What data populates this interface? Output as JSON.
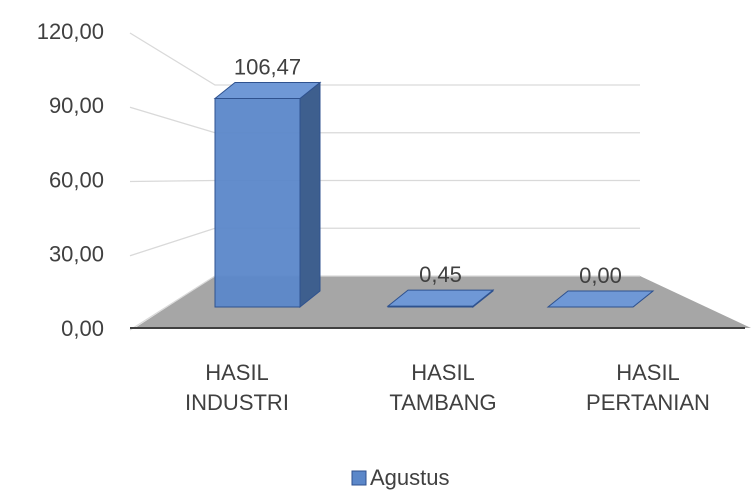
{
  "chart_data": {
    "type": "bar3d",
    "categories": [
      "HASIL INDUSTRI",
      "HASIL TAMBANG",
      "HASIL PERTANIAN"
    ],
    "series": [
      {
        "name": "Agustus",
        "color": "#5b87c9",
        "values": [
          106.47,
          0.45,
          0
        ],
        "value_labels": [
          "106,47",
          "0,45",
          "0,00"
        ]
      }
    ],
    "ylim": [
      0,
      120
    ],
    "yticks": [
      {
        "value": 0,
        "label": "0,00"
      },
      {
        "value": 30,
        "label": "30,00"
      },
      {
        "value": 60,
        "label": "60,00"
      },
      {
        "value": 90,
        "label": "90,00"
      },
      {
        "value": 120,
        "label": "120,00"
      }
    ],
    "grid": true,
    "legend": "bottom"
  }
}
